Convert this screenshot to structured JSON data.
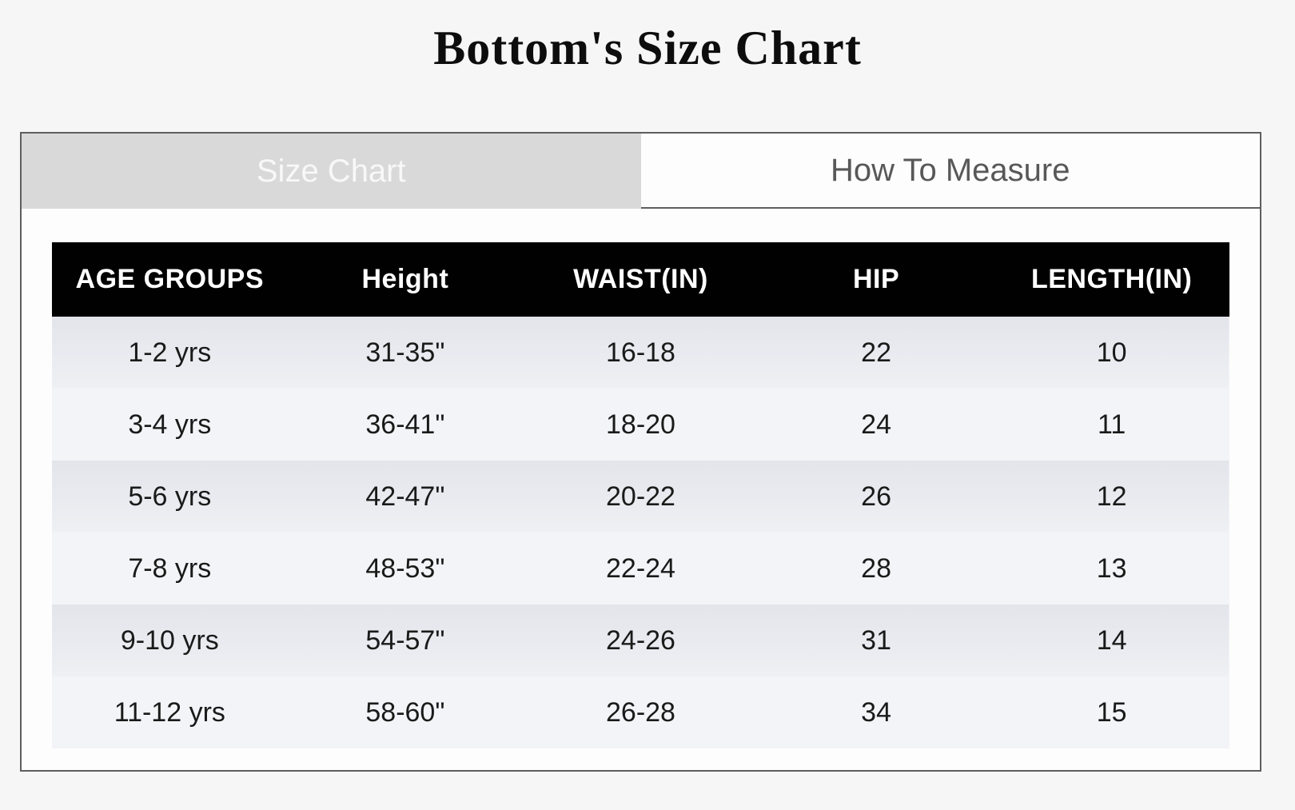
{
  "page": {
    "title": "Bottom's Size Chart"
  },
  "tabs": {
    "size_chart_label": "Size Chart",
    "how_to_measure_label": "How To Measure",
    "active_tab": "Size Chart"
  },
  "table": {
    "headers": [
      "AGE GROUPS",
      "Height",
      "WAIST(IN)",
      "HIP",
      "LENGTH(IN)"
    ],
    "rows": [
      [
        "1-2 yrs",
        "31-35\"",
        "16-18",
        "22",
        "10"
      ],
      [
        "3-4 yrs",
        "36-41\"",
        "18-20",
        "24",
        "11"
      ],
      [
        "5-6 yrs",
        "42-47\"",
        "20-22",
        "26",
        "12"
      ],
      [
        "7-8 yrs",
        "48-53\"",
        "22-24",
        "28",
        "13"
      ],
      [
        "9-10 yrs",
        "54-57\"",
        "24-26",
        "31",
        "14"
      ],
      [
        "11-12 yrs",
        "58-60\"",
        "26-28",
        "34",
        "15"
      ]
    ]
  },
  "colors": {
    "page_background": "#f6f6f6",
    "panel_border": "#5e5e5e",
    "active_tab_background": "#d9d9d9",
    "active_tab_text": "#f8f8f8",
    "inactive_tab_text": "#585858",
    "table_header_background": "#010101",
    "table_header_text": "#ffffff",
    "row_odd_background": "#e3e5eb",
    "row_even_background": "#f3f4f7"
  }
}
